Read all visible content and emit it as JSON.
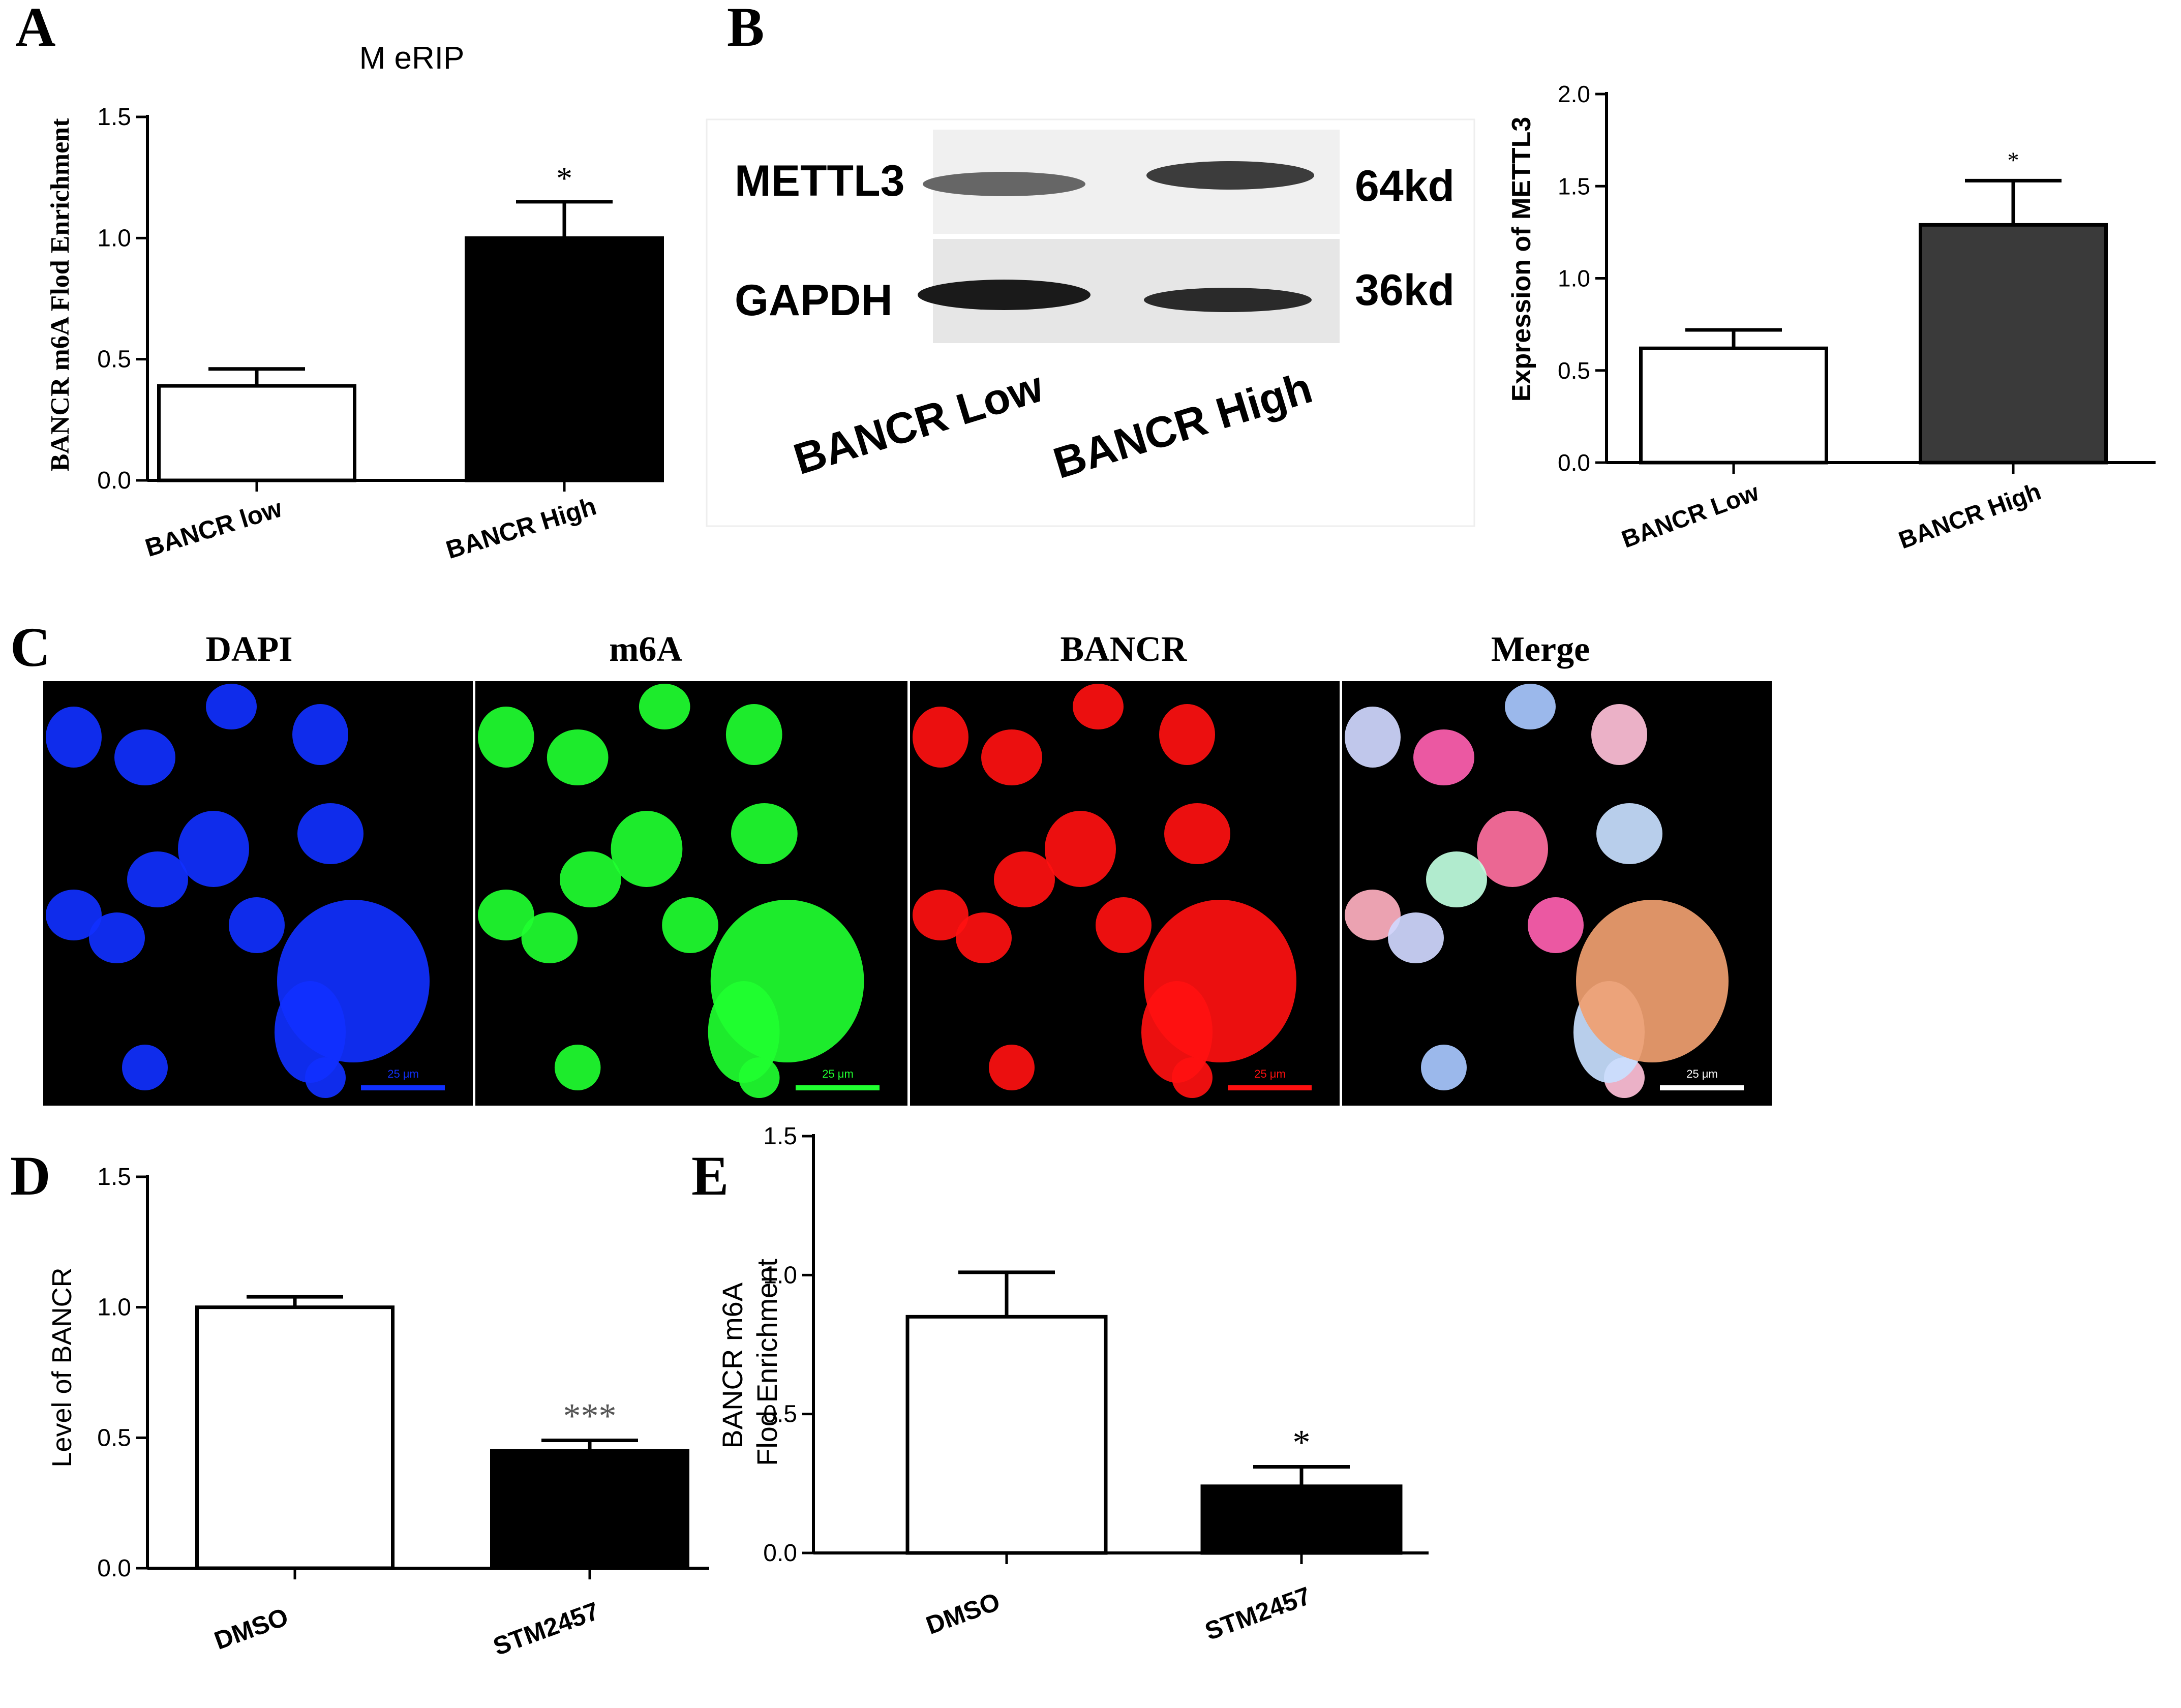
{
  "panels": [
    {
      "letter": "A",
      "title": "M eRIP",
      "ylabel": "BANCR m6A Flod Enrichment"
    },
    {
      "letter": "B",
      "ylabel": "Expression of METTL3"
    },
    {
      "letter": "C"
    },
    {
      "letter": "D",
      "ylabel": "Level of BANCR"
    },
    {
      "letter": "E",
      "ylabel": "BANCR m6A\nFlod Enrichment"
    }
  ],
  "blot": {
    "bands": [
      {
        "protein": "METTL3",
        "size": "64kd"
      },
      {
        "protein": "GAPDH",
        "size": "36kd"
      }
    ],
    "lanes": [
      "BANCR Low",
      "BANCR High"
    ]
  },
  "microscopy": {
    "channels": [
      {
        "label": "DAPI",
        "color": "#1030ff"
      },
      {
        "label": "m6A",
        "color": "#20ff30"
      },
      {
        "label": "BANCR",
        "color": "#ff1010"
      },
      {
        "label": "Merge",
        "color": "#ffffff"
      }
    ],
    "scale_bar_label": "25 μm"
  },
  "chart_data": [
    {
      "panel": "A",
      "type": "bar",
      "title": "M eRIP",
      "ylabel": "BANCR m6A Flod Enrichment",
      "categories": [
        "BANCR low",
        "BANCR High"
      ],
      "values": [
        0.39,
        1.0
      ],
      "errors": [
        0.07,
        0.15
      ],
      "significance": [
        "",
        "*"
      ],
      "bar_fills": [
        "#ffffff",
        "#000000"
      ],
      "ylim": [
        0,
        1.5
      ],
      "ticks": [
        0.0,
        0.5,
        1.0,
        1.5
      ]
    },
    {
      "panel": "B",
      "type": "bar",
      "ylabel": "Expression of METTL3",
      "categories": [
        "BANCR Low",
        "BANCR High"
      ],
      "values": [
        0.62,
        1.29
      ],
      "errors": [
        0.1,
        0.24
      ],
      "significance": [
        "",
        "*"
      ],
      "bar_fills": [
        "#ffffff",
        "#3a3a3a"
      ],
      "ylim": [
        0,
        2.0
      ],
      "ticks": [
        0.0,
        0.5,
        1.0,
        1.5,
        2.0
      ]
    },
    {
      "panel": "D",
      "type": "bar",
      "ylabel": "Level of BANCR",
      "categories": [
        "DMSO",
        "STM2457"
      ],
      "values": [
        1.0,
        0.45
      ],
      "errors": [
        0.04,
        0.04
      ],
      "significance": [
        "",
        "***"
      ],
      "bar_fills": [
        "#ffffff",
        "#000000"
      ],
      "ylim": [
        0,
        1.5
      ],
      "ticks": [
        0.0,
        0.5,
        1.0,
        1.5
      ]
    },
    {
      "panel": "E",
      "type": "bar",
      "ylabel": "BANCR m6A Flod Enrichment",
      "categories": [
        "DMSO",
        "STM2457"
      ],
      "values": [
        0.85,
        0.24
      ],
      "errors": [
        0.16,
        0.07
      ],
      "significance": [
        "",
        "*"
      ],
      "bar_fills": [
        "#ffffff",
        "#000000"
      ],
      "ylim": [
        0,
        1.5
      ],
      "ticks": [
        0.0,
        0.5,
        1.0,
        1.5
      ]
    }
  ]
}
